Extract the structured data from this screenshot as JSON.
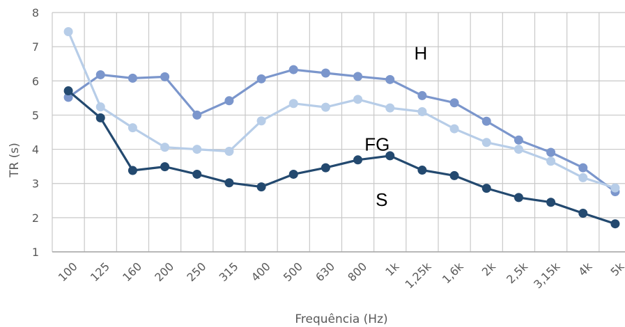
{
  "chart_data": {
    "type": "line",
    "title": "",
    "xlabel": "Frequência (Hz)",
    "ylabel": "TR (s)",
    "ylim": [
      1,
      8
    ],
    "yticks": [
      "1",
      "2",
      "3",
      "4",
      "5",
      "6",
      "7",
      "8"
    ],
    "grid": true,
    "legend": "none",
    "categories": [
      "100",
      "125",
      "160",
      "200",
      "250",
      "315",
      "400",
      "500",
      "630",
      "800",
      "1k",
      "1,25k",
      "1,6k",
      "2k",
      "2,5k",
      "3,15k",
      "4k",
      "5k"
    ],
    "series": [
      {
        "name": "H",
        "color": "#7b96cc",
        "values": [
          5.52,
          6.18,
          6.08,
          6.12,
          5.0,
          5.42,
          6.06,
          6.33,
          6.23,
          6.13,
          6.04,
          5.57,
          5.36,
          4.82,
          4.27,
          3.91,
          3.46,
          2.76
        ]
      },
      {
        "name": "FG",
        "color": "#b7cde8",
        "values": [
          7.44,
          5.24,
          4.63,
          4.06,
          4.0,
          3.94,
          4.83,
          5.34,
          5.23,
          5.46,
          5.21,
          5.1,
          4.6,
          4.2,
          4.0,
          3.65,
          3.17,
          2.87
        ]
      },
      {
        "name": "S",
        "color": "#23496f",
        "values": [
          5.71,
          4.92,
          3.38,
          3.49,
          3.27,
          3.02,
          2.9,
          3.27,
          3.46,
          3.69,
          3.81,
          3.39,
          3.23,
          2.86,
          2.59,
          2.45,
          2.13,
          1.82
        ]
      }
    ],
    "annotations": [
      {
        "text": "H",
        "series": "H"
      },
      {
        "text": "FG",
        "series": "FG"
      },
      {
        "text": "S",
        "series": "S"
      }
    ]
  }
}
